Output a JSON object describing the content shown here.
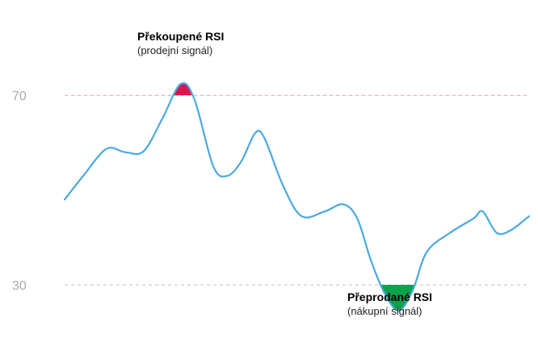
{
  "chart_data": {
    "type": "line",
    "title": "",
    "xlabel": "",
    "ylabel": "",
    "grid": false,
    "ylim": [
      22,
      85
    ],
    "xlim": [
      0,
      100
    ],
    "y_ticks": [
      {
        "value": 70,
        "label": "70"
      },
      {
        "value": 30,
        "label": "30"
      }
    ],
    "series": [
      {
        "color": "#4aa9df",
        "points": [
          [
            0,
            48
          ],
          [
            4,
            53
          ],
          [
            9,
            58.7
          ],
          [
            13,
            58
          ],
          [
            17,
            58.2
          ],
          [
            21,
            65
          ],
          [
            25,
            72.4
          ],
          [
            28,
            69
          ],
          [
            32,
            55
          ],
          [
            35,
            53
          ],
          [
            38,
            56
          ],
          [
            41,
            62
          ],
          [
            43,
            61
          ],
          [
            47,
            51
          ],
          [
            51,
            44.5
          ],
          [
            56,
            45.5
          ],
          [
            60,
            47
          ],
          [
            63,
            44
          ],
          [
            66,
            35
          ],
          [
            69,
            28
          ],
          [
            72,
            24.6
          ],
          [
            75,
            29
          ],
          [
            78,
            37
          ],
          [
            83,
            41
          ],
          [
            88,
            44
          ],
          [
            90,
            45.5
          ],
          [
            93,
            41
          ],
          [
            96,
            41.5
          ],
          [
            100,
            44.5
          ]
        ]
      }
    ],
    "annotations": [
      {
        "title": "Překoupené RSI",
        "subtitle": "(prodejní signál)",
        "zone": "above",
        "threshold": 70,
        "color": "#e0134f"
      },
      {
        "title": "Přeprodané RSI",
        "subtitle": "(nákupní signál)",
        "zone": "below",
        "threshold": 30,
        "color": "#0fa14b"
      }
    ],
    "reference_line_color": "#cccccc"
  }
}
